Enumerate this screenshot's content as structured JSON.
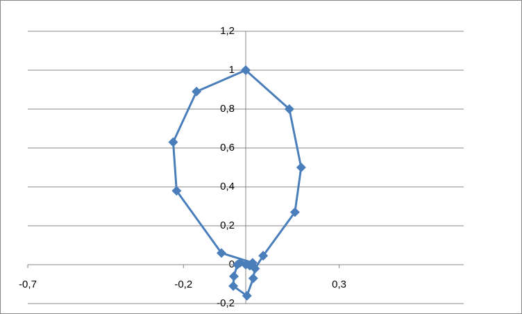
{
  "chart_data": {
    "type": "scatter",
    "line": true,
    "marker": "diamond",
    "xlim": [
      -0.7,
      0.7
    ],
    "xticks": [
      {
        "value": -0.7,
        "label": "-0,7"
      },
      {
        "value": -0.2,
        "label": "-0,2"
      },
      {
        "value": 0.3,
        "label": "0,3"
      }
    ],
    "ylim": [
      -0.2,
      1.2
    ],
    "yticks": [
      {
        "value": -0.2,
        "label": "-0,2"
      },
      0,
      {
        "value": 0.2,
        "label": "0,2"
      },
      {
        "value": 0.4,
        "label": "0,4"
      },
      {
        "value": 0.6,
        "label": "0,6"
      },
      {
        "value": 0.8,
        "label": "0,8"
      },
      1,
      {
        "value": 1.2,
        "label": "1,2"
      }
    ],
    "grid": true,
    "series": [
      {
        "color": "#4a7ebb",
        "x": [
          0,
          0.14,
          0.178,
          0.158,
          0.056,
          0.03,
          0.024,
          0.004,
          -0.04,
          -0.038,
          -0.027,
          -0.018,
          0,
          0.013,
          0.022,
          -0.078,
          -0.222,
          -0.233,
          -0.158,
          0
        ],
        "values": [
          1.0,
          0.8,
          0.5,
          0.27,
          0.046,
          -0.02,
          -0.07,
          -0.16,
          -0.11,
          -0.06,
          0,
          0.01,
          0,
          -0.005,
          0.01,
          0.06,
          0.38,
          0.63,
          0.89,
          1.0
        ]
      }
    ]
  }
}
